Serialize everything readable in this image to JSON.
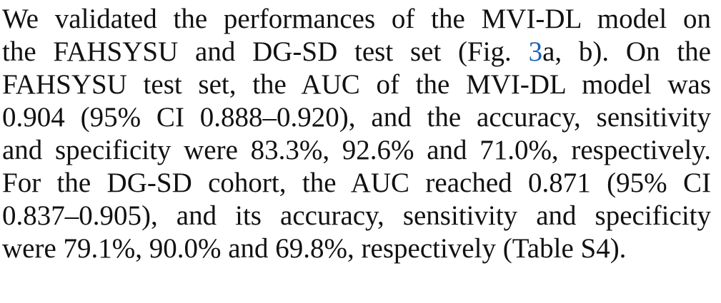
{
  "paragraph": {
    "lines": [
      {
        "text": "We validated the performances of the MVI-DL model on"
      },
      {
        "pre": "the FAHSYSU and DG-SD test set (Fig. ",
        "link": "3",
        "post": "a, b). On the"
      },
      {
        "text": "FAHSYSU test set, the AUC of the MVI-DL model was"
      },
      {
        "text": "0.904 (95% CI 0.888–0.920), and the accuracy, sensitivity"
      },
      {
        "text": "and specificity were 83.3%, 92.6% and 71.0%, respectively."
      },
      {
        "text": "For the DG-SD cohort, the AUC reached 0.871 (95% CI"
      },
      {
        "text": "0.837–0.905), and its accuracy, sensitivity and specificity"
      },
      {
        "text": "were 79.1%, 90.0% and 69.8%, respectively (Table S4)."
      }
    ]
  },
  "colors": {
    "text": "#111111",
    "link": "#1a63b5",
    "background": "#ffffff"
  }
}
